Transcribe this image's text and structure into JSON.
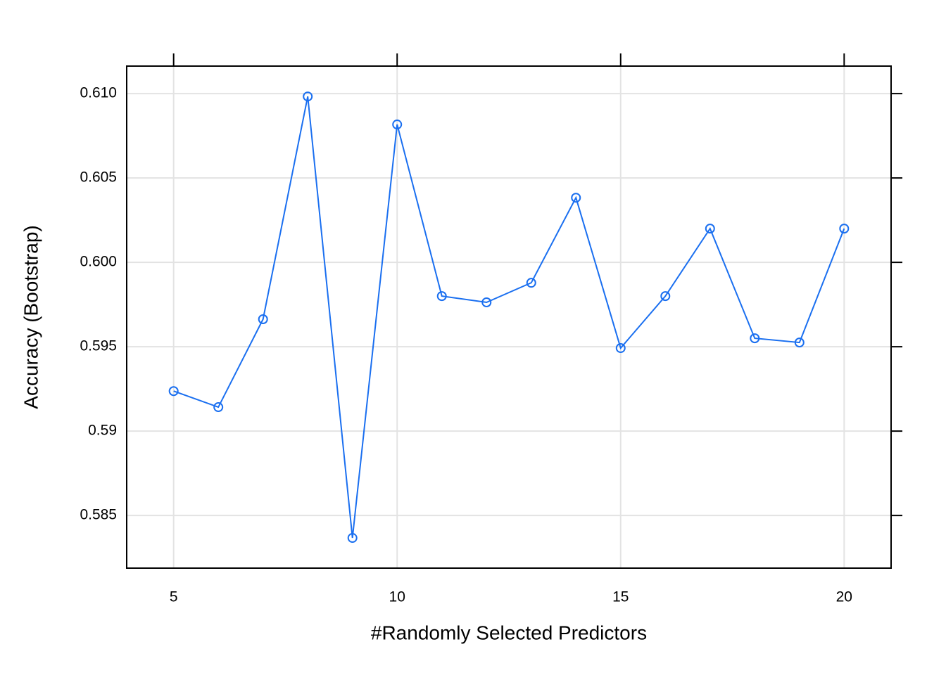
{
  "chart_data": {
    "type": "line",
    "xlabel": "#Randomly Selected Predictors",
    "ylabel": "Accuracy (Bootstrap)",
    "x": [
      5,
      6,
      7,
      8,
      9,
      10,
      11,
      12,
      13,
      14,
      15,
      16,
      17,
      18,
      19,
      20
    ],
    "series": [
      {
        "color": "#1a6ff0",
        "values": [
          0.59237,
          0.59142,
          0.59663,
          0.60983,
          0.58367,
          0.60817,
          0.598,
          0.59763,
          0.59879,
          0.60383,
          0.59492,
          0.598,
          0.602,
          0.5955,
          0.59525,
          0.602
        ]
      }
    ],
    "xlim": [
      3.95,
      21.05
    ],
    "xticks": [
      5,
      10,
      15,
      20
    ],
    "ylim": [
      0.58188,
      0.61163
    ],
    "yticks": [
      0.585,
      0.59,
      0.595,
      {
        "value": 0.6,
        "label": "0.600"
      },
      0.605,
      {
        "value": 0.61,
        "label": "0.610"
      }
    ],
    "grid": true
  }
}
